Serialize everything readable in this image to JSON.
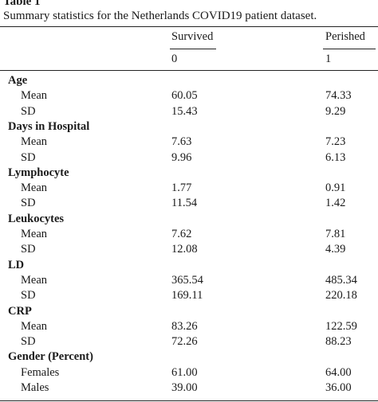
{
  "table": {
    "label": "Table 1",
    "caption": "Summary statistics for the Netherlands COVID19 patient dataset.",
    "columns": [
      {
        "name": "Survived",
        "code": "0"
      },
      {
        "name": "Perished",
        "code": "1"
      }
    ],
    "groups": [
      {
        "label": "Age",
        "rows": [
          {
            "stat": "Mean",
            "survived": "60.05",
            "perished": "74.33"
          },
          {
            "stat": "SD",
            "survived": "15.43",
            "perished": "9.29"
          }
        ]
      },
      {
        "label": "Days in Hospital",
        "rows": [
          {
            "stat": "Mean",
            "survived": "7.63",
            "perished": "7.23"
          },
          {
            "stat": "SD",
            "survived": "9.96",
            "perished": "6.13"
          }
        ]
      },
      {
        "label": "Lymphocyte",
        "rows": [
          {
            "stat": "Mean",
            "survived": "1.77",
            "perished": "0.91"
          },
          {
            "stat": "SD",
            "survived": "11.54",
            "perished": "1.42"
          }
        ]
      },
      {
        "label": "Leukocytes",
        "rows": [
          {
            "stat": "Mean",
            "survived": "7.62",
            "perished": "7.81"
          },
          {
            "stat": "SD",
            "survived": "12.08",
            "perished": "4.39"
          }
        ]
      },
      {
        "label": "LD",
        "rows": [
          {
            "stat": "Mean",
            "survived": "365.54",
            "perished": "485.34"
          },
          {
            "stat": "SD",
            "survived": "169.11",
            "perished": "220.18"
          }
        ]
      },
      {
        "label": "CRP",
        "rows": [
          {
            "stat": "Mean",
            "survived": "83.26",
            "perished": "122.59"
          },
          {
            "stat": "SD",
            "survived": "72.26",
            "perished": "88.23"
          }
        ]
      },
      {
        "label": "Gender (Percent)",
        "rows": [
          {
            "stat": "Females",
            "survived": "61.00",
            "perished": "64.00"
          },
          {
            "stat": "Males",
            "survived": "39.00",
            "perished": "36.00"
          }
        ]
      }
    ]
  }
}
